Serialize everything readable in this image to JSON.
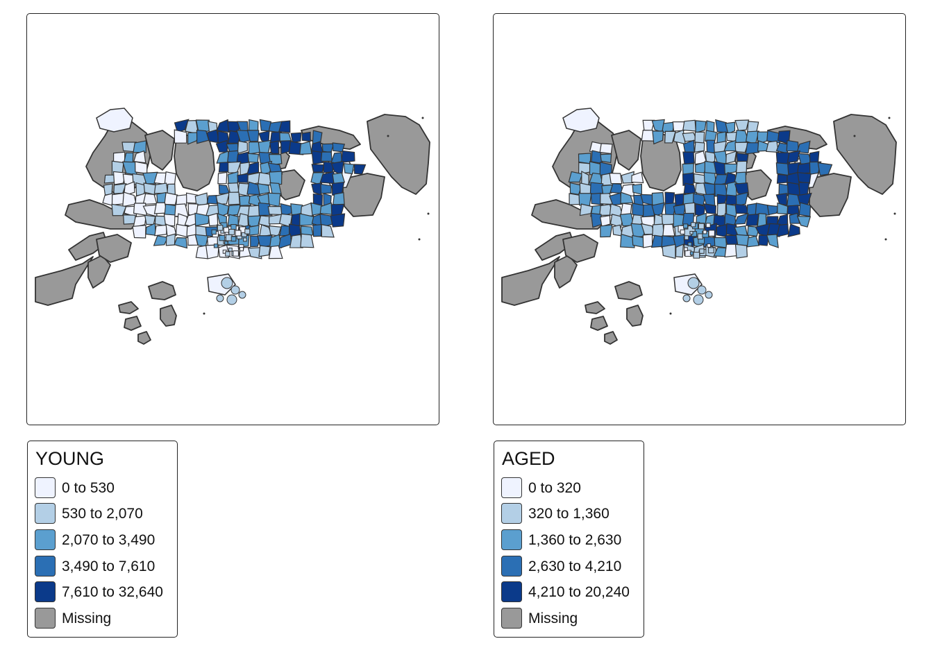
{
  "maps": [
    {
      "variable": "YOUNG",
      "legend": {
        "title": "YOUNG",
        "items": [
          {
            "label": "0 to 530",
            "color": "#eff3ff"
          },
          {
            "label": "530 to 2,070",
            "color": "#b3cfe6"
          },
          {
            "label": "2,070 to 3,490",
            "color": "#5b9fcf"
          },
          {
            "label": "3,490 to 7,610",
            "color": "#2b6fb4"
          },
          {
            "label": "7,610 to 32,640",
            "color": "#0b3a8a"
          },
          {
            "label": "Missing",
            "color": "#999999"
          }
        ]
      }
    },
    {
      "variable": "AGED",
      "legend": {
        "title": "AGED",
        "items": [
          {
            "label": "0 to 320",
            "color": "#eff3ff"
          },
          {
            "label": "320 to 1,360",
            "color": "#b3cfe6"
          },
          {
            "label": "1,360 to 2,630",
            "color": "#5b9fcf"
          },
          {
            "label": "2,630 to 4,210",
            "color": "#2b6fb4"
          },
          {
            "label": "4,210 to 20,240",
            "color": "#0b3a8a"
          },
          {
            "label": "Missing",
            "color": "#999999"
          }
        ]
      }
    }
  ]
}
